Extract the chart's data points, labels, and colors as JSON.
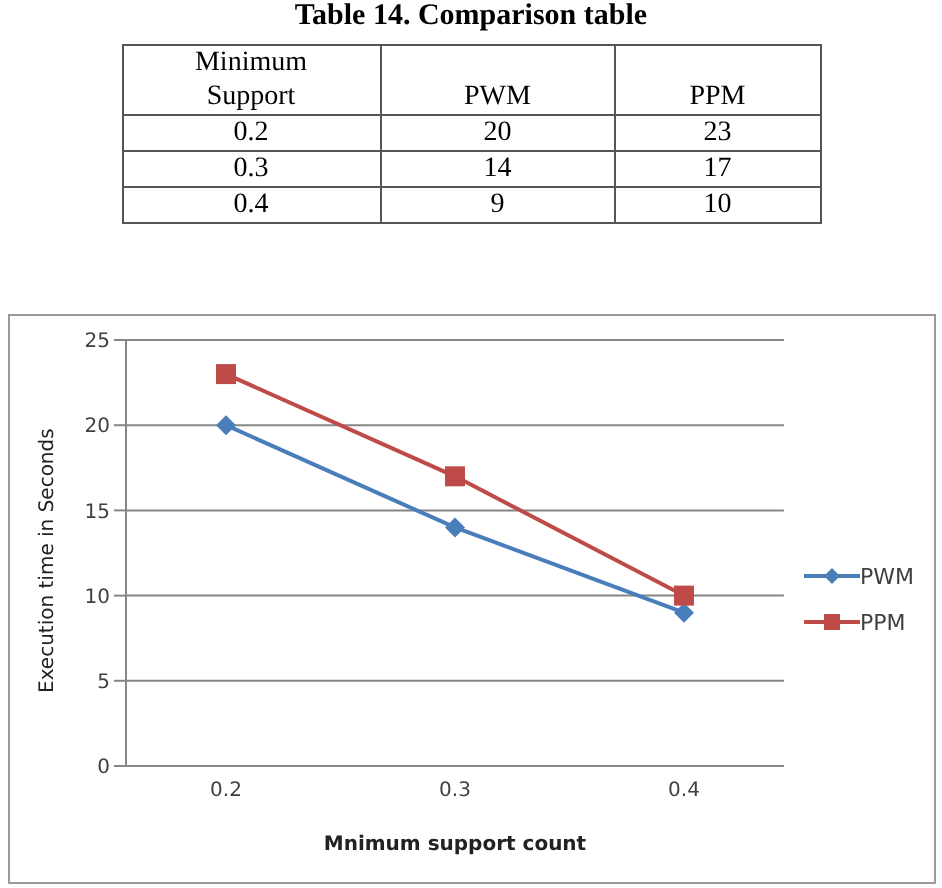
{
  "chart_data": [
    {
      "type": "other",
      "title": "Table 14. Comparison table",
      "annotations": [
        "Minimum Support"
      ],
      "categories": [
        "0.2",
        "0.3",
        "0.4"
      ],
      "data_labels": true,
      "series": [
        {
          "name": "PWM",
          "values": [
            20,
            14,
            9
          ]
        },
        {
          "name": "PPM",
          "values": [
            23,
            17,
            10
          ]
        }
      ]
    },
    {
      "type": "line",
      "xlabel": "Mnimum support  count",
      "ylabel": "Execution time in Seconds",
      "categories": [
        "0.2",
        "0.3",
        "0.4"
      ],
      "series": [
        {
          "name": "PWM",
          "color": "#4a7ebb",
          "values": [
            20,
            14,
            9
          ],
          "marker": "diamond"
        },
        {
          "name": "PPM",
          "color": "#be4b48",
          "values": [
            23,
            17,
            10
          ],
          "marker": "square"
        }
      ],
      "ylim": [
        0,
        25
      ],
      "yticks": [
        0,
        5,
        10,
        15,
        20,
        25
      ],
      "grid": "y",
      "legend": "right",
      "line_style": "solid"
    }
  ]
}
